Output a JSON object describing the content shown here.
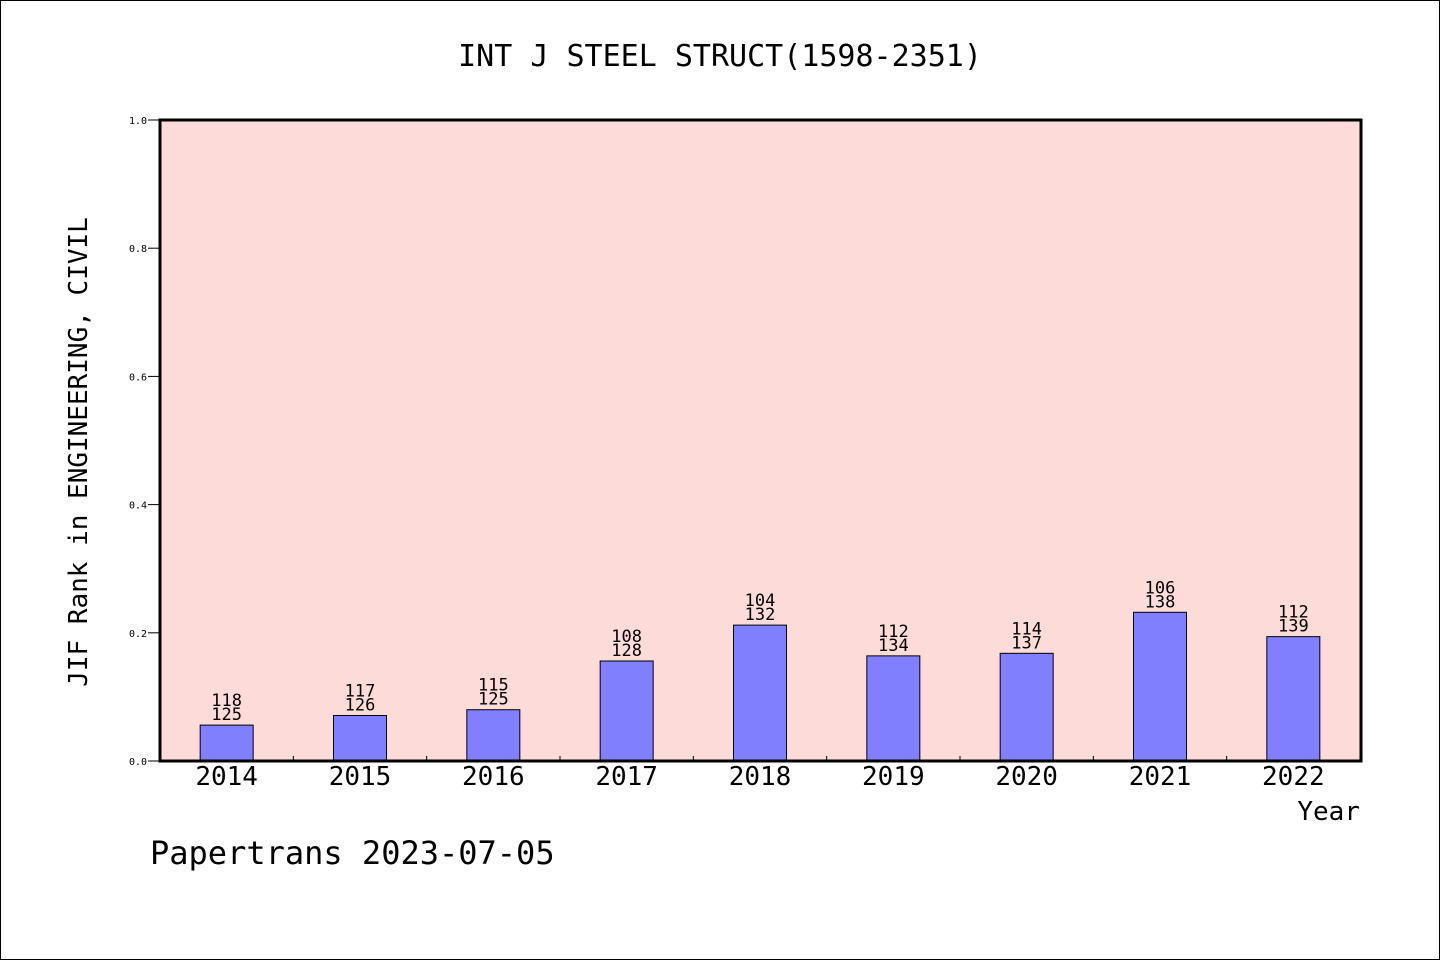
{
  "chart_data": {
    "type": "bar",
    "title": "INT J STEEL STRUCT(1598-2351)",
    "xlabel": "Year",
    "ylabel": "JIF Rank in ENGINEERING, CIVIL",
    "footer": "Papertrans 2023-07-05",
    "categories": [
      "2014",
      "2015",
      "2016",
      "2017",
      "2018",
      "2019",
      "2020",
      "2021",
      "2022"
    ],
    "values": [
      0.056,
      0.071,
      0.08,
      0.156,
      0.212,
      0.164,
      0.168,
      0.232,
      0.194
    ],
    "rank_labels": [
      "118",
      "117",
      "115",
      "108",
      "104",
      "112",
      "114",
      "106",
      "112"
    ],
    "total_labels": [
      "125",
      "126",
      "125",
      "128",
      "132",
      "134",
      "137",
      "138",
      "139"
    ],
    "yticks": [
      "0.0",
      "0.2",
      "0.4",
      "0.6",
      "0.8",
      "1.0"
    ],
    "ylim": [
      0,
      1.0
    ],
    "grid": false,
    "colors": {
      "plot_bg": "#fddbd8",
      "bar": "#8080ff",
      "axis": "#000000"
    }
  }
}
